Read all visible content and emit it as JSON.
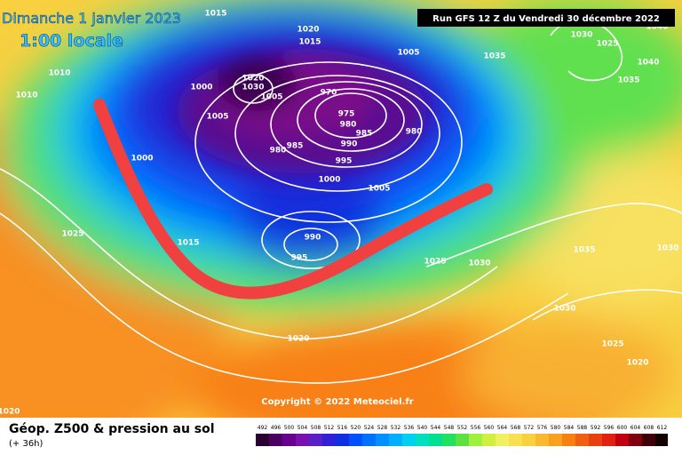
{
  "header": {
    "date": "Dimanche 1 janvier 2023",
    "time": "1:00 locale",
    "run": "Run GFS 12 Z du Vendredi 30 décembre 2022"
  },
  "map": {
    "isobar_labels": [
      "1015",
      "1020",
      "1015",
      "1010",
      "1010",
      "1000",
      "1020",
      "1030",
      "1005",
      "1005",
      "970",
      "975",
      "980",
      "985",
      "980",
      "990",
      "985",
      "980",
      "995",
      "1000",
      "1000",
      "1005",
      "1025",
      "1015",
      "990",
      "995",
      "1025",
      "1030",
      "1035",
      "1030",
      "1030",
      "1025",
      "1020",
      "1020",
      "1020",
      "1030",
      "1025",
      "1035",
      "1005",
      "1035",
      "1040",
      "1040"
    ],
    "copyright": "Copyright © 2022 Meteociel.fr"
  },
  "footer": {
    "title": "Géop. Z500 & pression au sol",
    "lead": "(+ 36h)",
    "scale": {
      "labels": [
        492,
        496,
        500,
        504,
        508,
        512,
        516,
        520,
        524,
        528,
        532,
        536,
        540,
        544,
        548,
        552,
        556,
        560,
        564,
        568,
        572,
        576,
        580,
        584,
        588,
        592,
        596,
        600,
        604,
        608,
        612
      ],
      "colors": [
        "#2a0033",
        "#4a0060",
        "#6a0090",
        "#7a10b0",
        "#5a20c8",
        "#3020d8",
        "#1030e0",
        "#0050ff",
        "#0070ff",
        "#0090ff",
        "#00b0ff",
        "#00d0f0",
        "#00e0c0",
        "#00e090",
        "#20e060",
        "#60e040",
        "#a0f040",
        "#d0f040",
        "#f0f060",
        "#f8e050",
        "#f8d040",
        "#f8b830",
        "#f8a020",
        "#f88010",
        "#f06010",
        "#e84010",
        "#e02010",
        "#c00010",
        "#800010",
        "#400008",
        "#100000"
      ]
    }
  }
}
